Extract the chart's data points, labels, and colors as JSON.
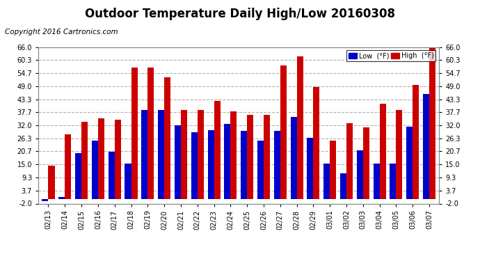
{
  "title": "Outdoor Temperature Daily High/Low 20160308",
  "copyright": "Copyright 2016 Cartronics.com",
  "legend_low": "Low  (°F)",
  "legend_high": "High  (°F)",
  "dates": [
    "02/13",
    "02/14",
    "02/15",
    "02/16",
    "02/17",
    "02/18",
    "02/19",
    "02/20",
    "02/21",
    "02/22",
    "02/23",
    "02/24",
    "02/25",
    "02/26",
    "02/27",
    "02/28",
    "02/29",
    "03/01",
    "03/02",
    "03/03",
    "03/04",
    "03/05",
    "03/06",
    "03/07"
  ],
  "highs": [
    14.5,
    28.0,
    33.5,
    35.0,
    34.5,
    57.0,
    57.0,
    53.0,
    38.5,
    38.5,
    42.5,
    38.0,
    36.5,
    36.5,
    58.0,
    62.0,
    48.5,
    25.5,
    33.0,
    31.0,
    41.5,
    38.5,
    49.5,
    66.0
  ],
  "lows": [
    -1.0,
    1.0,
    20.0,
    25.5,
    20.5,
    15.5,
    38.5,
    38.5,
    32.0,
    29.0,
    30.0,
    32.5,
    29.5,
    25.5,
    29.5,
    35.5,
    26.5,
    15.5,
    11.0,
    21.0,
    15.5,
    15.5,
    31.5,
    45.5
  ],
  "low_color": "#0000cc",
  "high_color": "#cc0000",
  "bg_color": "#ffffff",
  "grid_color": "#b0b0b0",
  "ylim": [
    -2.0,
    66.0
  ],
  "yticks": [
    -2.0,
    3.7,
    9.3,
    15.0,
    20.7,
    26.3,
    32.0,
    37.7,
    43.3,
    49.0,
    54.7,
    60.3,
    66.0
  ],
  "title_fontsize": 12,
  "copyright_fontsize": 7.5,
  "bar_width": 0.38
}
